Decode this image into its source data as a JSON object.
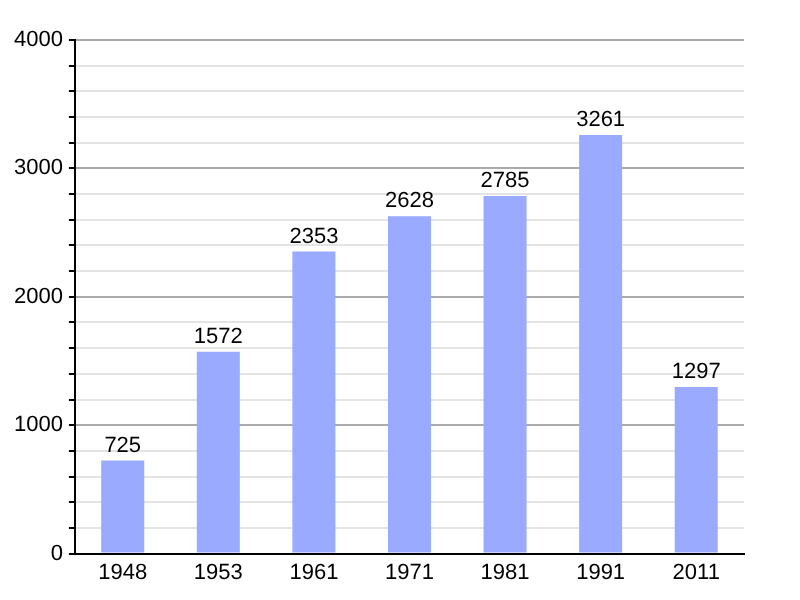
{
  "chart_data": {
    "type": "bar",
    "categories": [
      "1948",
      "1953",
      "1961",
      "1971",
      "1981",
      "1991",
      "2011"
    ],
    "values": [
      725,
      1572,
      2353,
      2628,
      2785,
      3261,
      1297
    ],
    "color": "#99aaff",
    "data_labels": true,
    "grid": "y",
    "ylim": [
      0,
      4000
    ],
    "yticks": [
      0,
      {
        "value": 200,
        "label": null
      },
      {
        "value": 400,
        "label": null
      },
      {
        "value": 600,
        "label": null
      },
      {
        "value": 800,
        "label": null
      },
      1000,
      {
        "value": 1200,
        "label": null
      },
      {
        "value": 1400,
        "label": null
      },
      {
        "value": 1600,
        "label": null
      },
      {
        "value": 1800,
        "label": null
      },
      2000,
      {
        "value": 2200,
        "label": null
      },
      {
        "value": 2400,
        "label": null
      },
      {
        "value": 2600,
        "label": null
      },
      {
        "value": 2800,
        "label": null
      },
      3000,
      {
        "value": 3200,
        "label": null
      },
      {
        "value": 3400,
        "label": null
      },
      {
        "value": 3600,
        "label": null
      },
      {
        "value": 3800,
        "label": null
      },
      4000
    ]
  }
}
